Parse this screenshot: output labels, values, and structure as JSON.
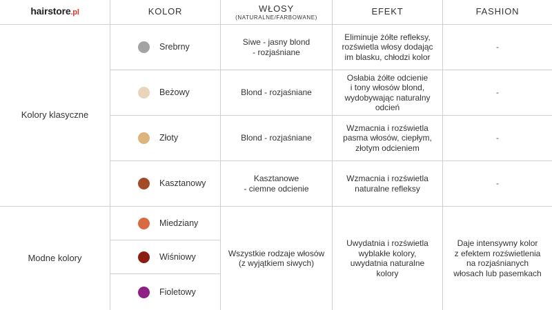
{
  "brand": {
    "name": "hairstore",
    "tld": ".pl"
  },
  "headers": {
    "kolor": "KOLOR",
    "wlosy": "WŁOSY",
    "wlosy_sub": "(NATURALNE/FARBOWANE)",
    "efekt": "EFEKT",
    "fashion": "FASHION"
  },
  "groups": [
    {
      "label": "Kolory klasyczne"
    },
    {
      "label": "Modne kolory"
    }
  ],
  "classic_rows": [
    {
      "color_name": "Srebrny",
      "dot_color": "#a3a2a4",
      "hair_line1": "Siwe - jasny blond",
      "hair_line2": "- rozjaśniane",
      "effect_line1": "Eliminuje żółte refleksy,",
      "effect_line2": "rozświetla włosy dodając",
      "effect_line3": "im blasku, chłodzi kolor",
      "effect_line4": "",
      "fashion": "-"
    },
    {
      "color_name": "Beżowy",
      "dot_color": "#e9d5bd",
      "hair_line1": "Blond - rozjaśniane",
      "hair_line2": "",
      "effect_line1": "Osłabia żółte odcienie",
      "effect_line2": "i tony włosów blond,",
      "effect_line3": "wydobywając naturalny",
      "effect_line4": "odcień",
      "fashion": "-"
    },
    {
      "color_name": "Złoty",
      "dot_color": "#dcb57c",
      "hair_line1": "Blond - rozjaśniane",
      "hair_line2": "",
      "effect_line1": "Wzmacnia i rozświetla",
      "effect_line2": "pasma włosów, ciepłym,",
      "effect_line3": "złotym odcieniem",
      "effect_line4": "",
      "fashion": "-"
    },
    {
      "color_name": "Kasztanowy",
      "dot_color": "#a34a26",
      "hair_line1": "Kasztanowe",
      "hair_line2": "- ciemne odcienie",
      "effect_line1": "Wzmacnia i rozświetla",
      "effect_line2": "naturalne refleksy",
      "effect_line3": "",
      "effect_line4": "",
      "fashion": "-"
    }
  ],
  "fashion_colors": [
    {
      "color_name": "Miedziany",
      "dot_color": "#d96b41"
    },
    {
      "color_name": "Wiśniowy",
      "dot_color": "#8b1f13"
    },
    {
      "color_name": "Fioletowy",
      "dot_color": "#8e1f86"
    }
  ],
  "fashion_group": {
    "hair_line1": "Wszystkie rodzaje włosów",
    "hair_line2": "(z wyjątkiem siwych)",
    "effect_line1": "Uwydatnia i rozświetla",
    "effect_line2": "wyblakłe kolory,",
    "effect_line3": "uwydatnia naturalne",
    "effect_line4": "kolory",
    "fashion_line1": "Daje intensywny kolor",
    "fashion_line2": "z efektem rozświetlenia",
    "fashion_line3": "na rozjaśnianych",
    "fashion_line4": "włosach lub pasemkach"
  }
}
